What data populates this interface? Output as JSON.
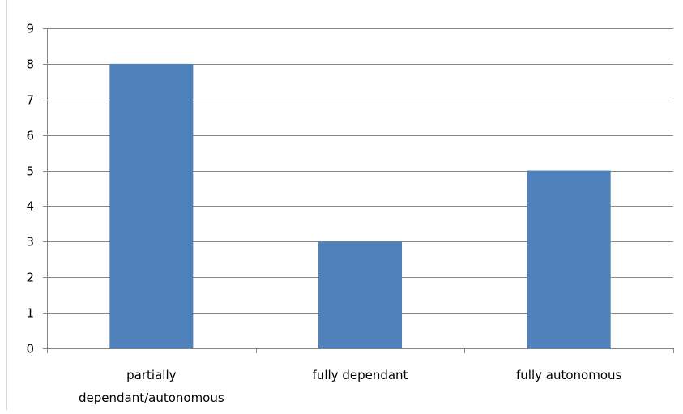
{
  "chart_data": {
    "type": "bar",
    "title": "",
    "xlabel": "",
    "ylabel": "",
    "categories": [
      "partially dependant/autonomous",
      "fully dependant",
      "fully autonomous"
    ],
    "category_label_lines": [
      [
        "partially",
        "dependant/autonomous"
      ],
      [
        "fully dependant"
      ],
      [
        "fully autonomous"
      ]
    ],
    "values": [
      8,
      3,
      5
    ],
    "ylim": [
      0,
      9
    ],
    "yticks": [
      0,
      1,
      2,
      3,
      4,
      5,
      6,
      7,
      8,
      9
    ],
    "grid": true,
    "legend": "none",
    "colors": {
      "bar": "#4f81bd",
      "grid": "#868686",
      "axis": "#868686",
      "text": "#000000"
    }
  }
}
